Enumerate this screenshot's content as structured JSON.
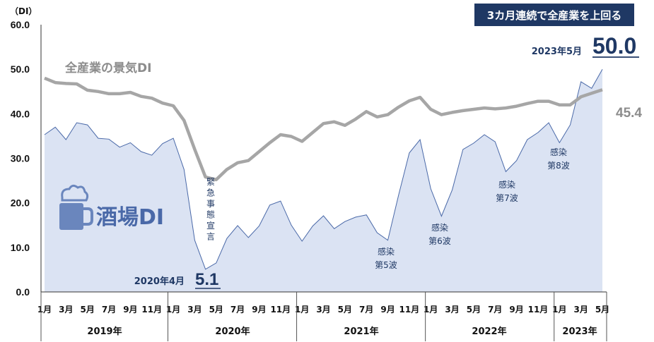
{
  "badge": "3カ月連続で全産業を上回る",
  "chart_data": {
    "type": "area",
    "y_unit": "（DI）",
    "ylim": [
      0,
      60
    ],
    "y_ticks": [
      "0.0",
      "10.0",
      "20.0",
      "30.0",
      "40.0",
      "50.0",
      "60.0"
    ],
    "x_tick_labels": [
      "1月",
      "3月",
      "5月",
      "7月",
      "9月",
      "11月",
      "1月",
      "3月",
      "5月",
      "7月",
      "9月",
      "11月",
      "1月",
      "3月",
      "5月",
      "7月",
      "9月",
      "11月",
      "1月",
      "3月",
      "5月",
      "7月",
      "9月",
      "11月",
      "1月",
      "3月",
      "5月"
    ],
    "years": [
      "2019年",
      "2020年",
      "2021年",
      "2022年",
      "2023年"
    ],
    "series": [
      {
        "name": "酒場DI",
        "color": "#4a69a8",
        "fill": "#dbe3f3",
        "values": [
          35.3,
          37.0,
          34.2,
          38.0,
          37.5,
          34.5,
          34.3,
          32.5,
          33.5,
          31.5,
          30.7,
          33.3,
          34.5,
          27.5,
          11.6,
          5.1,
          6.5,
          12.0,
          14.9,
          12.2,
          14.8,
          19.5,
          20.4,
          15.0,
          11.4,
          14.8,
          17.1,
          14.2,
          15.8,
          16.8,
          17.3,
          13.3,
          11.6,
          21.7,
          31.2,
          34.2,
          23.2,
          17.0,
          22.9,
          32.0,
          33.4,
          35.3,
          33.7,
          27.0,
          29.5,
          34.2,
          35.8,
          38.0,
          33.5,
          37.5,
          47.2,
          45.7,
          50.0
        ]
      },
      {
        "name": "全産業の景気DI",
        "color": "#a6a6a6",
        "values": [
          48.0,
          47.0,
          46.8,
          46.7,
          45.3,
          45.0,
          44.5,
          44.5,
          44.8,
          43.9,
          43.5,
          42.4,
          41.8,
          38.5,
          32.0,
          25.8,
          25.2,
          27.5,
          29.0,
          29.5,
          31.5,
          33.5,
          35.3,
          34.9,
          33.8,
          35.8,
          37.8,
          38.2,
          37.4,
          38.8,
          40.5,
          39.3,
          39.8,
          41.5,
          42.9,
          43.7,
          41.0,
          39.8,
          40.3,
          40.7,
          41.0,
          41.3,
          41.1,
          41.3,
          41.7,
          42.3,
          42.8,
          42.8,
          42.0,
          42.0,
          43.8,
          44.6,
          45.4
        ]
      }
    ],
    "annotations": {
      "start_label": "2020年4月",
      "start_value": "5.1",
      "end_label": "2023年5月",
      "end_value": "50.0",
      "series2_end_value": "45.4",
      "emergency": "緊急事態宣言",
      "wave5_a": "感染",
      "wave5_b": "第5波",
      "wave6_a": "感染",
      "wave6_b": "第6波",
      "wave7_a": "感染",
      "wave7_b": "第7波",
      "wave8_a": "感染",
      "wave8_b": "第8波"
    }
  }
}
